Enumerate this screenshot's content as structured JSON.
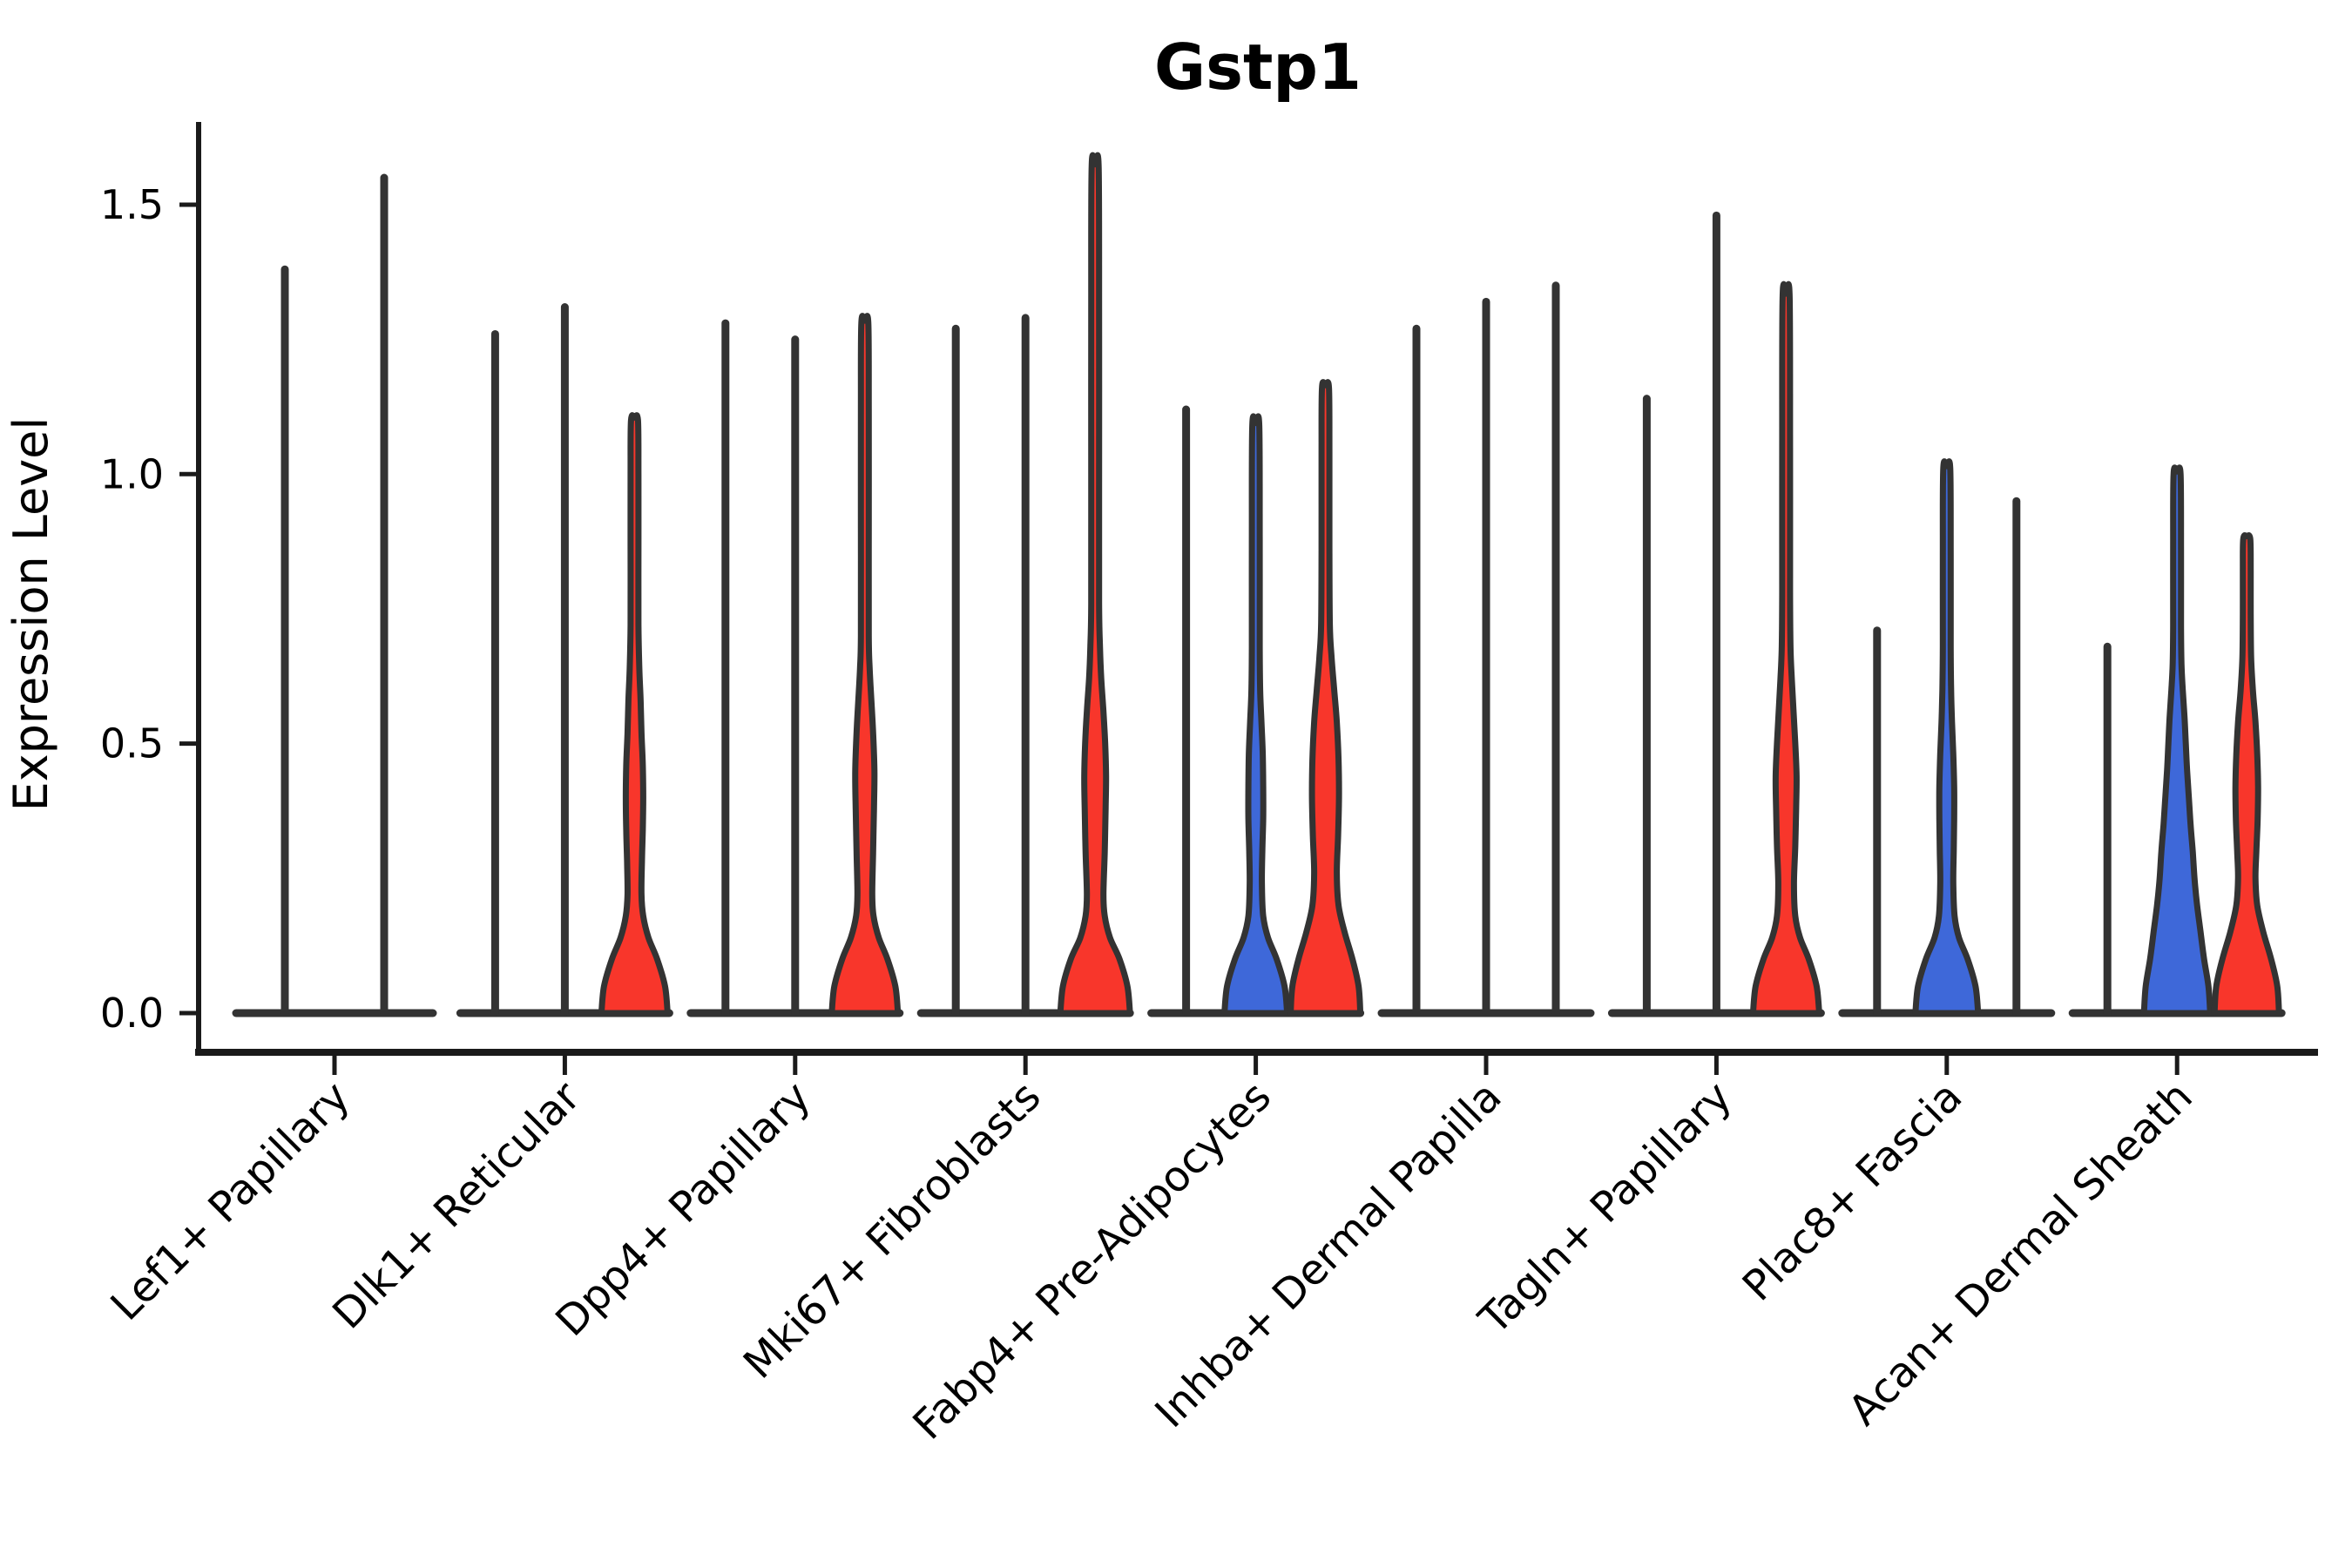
{
  "figure": {
    "title": "Gstp1",
    "background": "#FFFFFF"
  },
  "colors": {
    "red": "#F8362B",
    "blue": "#3E68D9",
    "outline": "#333333",
    "spine": "#1A1A1A",
    "text": "#000000",
    "background": "#FFFFFF"
  },
  "chart_data": {
    "type": "violin",
    "title": "Gstp1",
    "xlabel": "",
    "ylabel": "Expression Level",
    "ylim": [
      0,
      1.66
    ],
    "yticks": [
      0,
      0.5,
      1.0,
      1.5
    ],
    "ytick_labels": [
      "0.0",
      "0.5",
      "1.0",
      "1.5"
    ],
    "grid": false,
    "legend": false,
    "categories": [
      "Lef1+ Papillary",
      "Dlk1+ Reticular",
      "Dpp4+ Papillary",
      "Mki67+ Fibroblasts",
      "Fabp4+ Pre-Adipocytes",
      "Inhba+ Dermal Papilla",
      "Tagln+ Papillary",
      "Plac8+ Fascia",
      "Acan+ Dermal Sheath"
    ],
    "groups": [
      {
        "category": "Lef1+ Papillary",
        "violins": [
          {
            "style": "spike",
            "color": "none",
            "max": 1.38
          },
          {
            "style": "spike",
            "color": "none",
            "max": 1.55
          }
        ]
      },
      {
        "category": "Dlk1+ Reticular",
        "violins": [
          {
            "style": "spike",
            "color": "none",
            "max": 1.26
          },
          {
            "style": "spike",
            "color": "none",
            "max": 1.31
          },
          {
            "style": "violin",
            "color": "red",
            "max": 1.1,
            "profile": [
              [
                0,
                38
              ],
              [
                0.05,
                35
              ],
              [
                0.1,
                26
              ],
              [
                0.14,
                16
              ],
              [
                0.18,
                10
              ],
              [
                0.22,
                8
              ],
              [
                0.28,
                8.5
              ],
              [
                0.34,
                9.5
              ],
              [
                0.4,
                10
              ],
              [
                0.46,
                9.5
              ],
              [
                0.52,
                8
              ],
              [
                0.58,
                7
              ],
              [
                0.64,
                5.5
              ],
              [
                0.72,
                4.5
              ],
              [
                0.86,
                4.5
              ],
              [
                1.0,
                4.5
              ],
              [
                1.1,
                4
              ]
            ]
          }
        ]
      },
      {
        "category": "Dpp4+ Papillary",
        "violins": [
          {
            "style": "spike",
            "color": "none",
            "max": 1.28
          },
          {
            "style": "spike",
            "color": "none",
            "max": 1.25
          },
          {
            "style": "violin",
            "color": "red",
            "max": 1.28,
            "profile": [
              [
                0,
                38
              ],
              [
                0.05,
                35
              ],
              [
                0.1,
                26
              ],
              [
                0.14,
                16
              ],
              [
                0.18,
                10
              ],
              [
                0.22,
                8.5
              ],
              [
                0.3,
                9.5
              ],
              [
                0.38,
                10.5
              ],
              [
                0.45,
                11
              ],
              [
                0.52,
                9.5
              ],
              [
                0.58,
                7.5
              ],
              [
                0.64,
                5.5
              ],
              [
                0.7,
                4.5
              ],
              [
                0.9,
                4.5
              ],
              [
                1.12,
                4.5
              ],
              [
                1.28,
                4
              ]
            ]
          }
        ]
      },
      {
        "category": "Mki67+ Fibroblasts",
        "violins": [
          {
            "style": "spike",
            "color": "none",
            "max": 1.27
          },
          {
            "style": "spike",
            "color": "none",
            "max": 1.29
          },
          {
            "style": "violin",
            "color": "red",
            "max": 1.57,
            "profile": [
              [
                0,
                40
              ],
              [
                0.05,
                37
              ],
              [
                0.1,
                28
              ],
              [
                0.14,
                17
              ],
              [
                0.18,
                11
              ],
              [
                0.22,
                9.5
              ],
              [
                0.3,
                11
              ],
              [
                0.38,
                12
              ],
              [
                0.44,
                12.5
              ],
              [
                0.5,
                11.5
              ],
              [
                0.56,
                9.5
              ],
              [
                0.62,
                7
              ],
              [
                0.68,
                5.5
              ],
              [
                0.76,
                4.5
              ],
              [
                1.0,
                4.5
              ],
              [
                1.3,
                4.5
              ],
              [
                1.57,
                4
              ]
            ]
          }
        ]
      },
      {
        "category": "Fabp4+ Pre-Adipocytes",
        "violins": [
          {
            "style": "spike",
            "color": "none",
            "max": 1.12
          },
          {
            "style": "violin",
            "color": "blue",
            "max": 1.09,
            "profile": [
              [
                0,
                36
              ],
              [
                0.05,
                33
              ],
              [
                0.1,
                24
              ],
              [
                0.14,
                14
              ],
              [
                0.18,
                8.5
              ],
              [
                0.24,
                7
              ],
              [
                0.3,
                7.5
              ],
              [
                0.36,
                8.5
              ],
              [
                0.42,
                8.5
              ],
              [
                0.48,
                8
              ],
              [
                0.54,
                6.5
              ],
              [
                0.6,
                5
              ],
              [
                0.68,
                4.5
              ],
              [
                0.88,
                4.5
              ],
              [
                1.09,
                4
              ]
            ]
          },
          {
            "style": "violin",
            "color": "red",
            "max": 1.16,
            "profile": [
              [
                0,
                40
              ],
              [
                0.05,
                38
              ],
              [
                0.1,
                31
              ],
              [
                0.15,
                22
              ],
              [
                0.2,
                15
              ],
              [
                0.26,
                13
              ],
              [
                0.33,
                14.5
              ],
              [
                0.4,
                15.5
              ],
              [
                0.47,
                15
              ],
              [
                0.54,
                13
              ],
              [
                0.6,
                10
              ],
              [
                0.66,
                7
              ],
              [
                0.72,
                5
              ],
              [
                0.86,
                4.5
              ],
              [
                1.04,
                4.5
              ],
              [
                1.16,
                4
              ]
            ]
          }
        ]
      },
      {
        "category": "Inhba+ Dermal Papilla",
        "violins": [
          {
            "style": "spike",
            "color": "none",
            "max": 1.27
          },
          {
            "style": "spike",
            "color": "none",
            "max": 1.32
          },
          {
            "style": "spike",
            "color": "none",
            "max": 1.35
          }
        ]
      },
      {
        "category": "Tagln+ Papillary",
        "violins": [
          {
            "style": "spike",
            "color": "none",
            "max": 1.14
          },
          {
            "style": "spike",
            "color": "none",
            "max": 1.48
          },
          {
            "style": "violin",
            "color": "red",
            "max": 1.33,
            "profile": [
              [
                0,
                38
              ],
              [
                0.05,
                35
              ],
              [
                0.1,
                26
              ],
              [
                0.14,
                16
              ],
              [
                0.18,
                10.5
              ],
              [
                0.24,
                9
              ],
              [
                0.31,
                10.5
              ],
              [
                0.38,
                11.5
              ],
              [
                0.44,
                12
              ],
              [
                0.5,
                10.5
              ],
              [
                0.56,
                8.5
              ],
              [
                0.62,
                6.5
              ],
              [
                0.68,
                5
              ],
              [
                0.78,
                4.5
              ],
              [
                1.05,
                4.5
              ],
              [
                1.33,
                4
              ]
            ]
          }
        ]
      },
      {
        "category": "Plac8+ Fascia",
        "violins": [
          {
            "style": "spike",
            "color": "none",
            "max": 0.71
          },
          {
            "style": "violin",
            "color": "blue",
            "max": 1.01,
            "profile": [
              [
                0,
                36
              ],
              [
                0.05,
                33
              ],
              [
                0.1,
                24
              ],
              [
                0.14,
                14
              ],
              [
                0.18,
                9
              ],
              [
                0.24,
                7.5
              ],
              [
                0.3,
                8
              ],
              [
                0.36,
                8.5
              ],
              [
                0.42,
                8.5
              ],
              [
                0.48,
                7.5
              ],
              [
                0.54,
                6
              ],
              [
                0.6,
                5
              ],
              [
                0.68,
                4.5
              ],
              [
                0.85,
                4.5
              ],
              [
                1.01,
                4
              ]
            ]
          },
          {
            "style": "spike",
            "color": "none",
            "max": 0.95
          }
        ]
      },
      {
        "category": "Acan+ Dermal Sheath",
        "violins": [
          {
            "style": "spike",
            "color": "none",
            "max": 0.68
          },
          {
            "style": "violin",
            "color": "blue",
            "max": 1.0,
            "profile": [
              [
                0,
                38
              ],
              [
                0.05,
                36
              ],
              [
                0.1,
                31
              ],
              [
                0.15,
                27
              ],
              [
                0.2,
                23
              ],
              [
                0.25,
                20
              ],
              [
                0.3,
                18
              ],
              [
                0.35,
                15.5
              ],
              [
                0.4,
                13.5
              ],
              [
                0.45,
                11.5
              ],
              [
                0.5,
                10
              ],
              [
                0.55,
                8.5
              ],
              [
                0.6,
                6.5
              ],
              [
                0.65,
                5
              ],
              [
                0.72,
                4.5
              ],
              [
                0.86,
                4.5
              ],
              [
                1.0,
                4
              ]
            ]
          },
          {
            "style": "violin",
            "color": "red",
            "max": 0.88,
            "profile": [
              [
                0,
                37
              ],
              [
                0.05,
                35
              ],
              [
                0.1,
                28
              ],
              [
                0.15,
                19
              ],
              [
                0.2,
                12
              ],
              [
                0.25,
                10
              ],
              [
                0.3,
                11
              ],
              [
                0.36,
                12.5
              ],
              [
                0.42,
                13
              ],
              [
                0.48,
                12
              ],
              [
                0.54,
                10
              ],
              [
                0.6,
                7
              ],
              [
                0.66,
                5
              ],
              [
                0.74,
                4.5
              ],
              [
                0.82,
                4.5
              ],
              [
                0.88,
                4
              ]
            ]
          }
        ]
      }
    ]
  }
}
